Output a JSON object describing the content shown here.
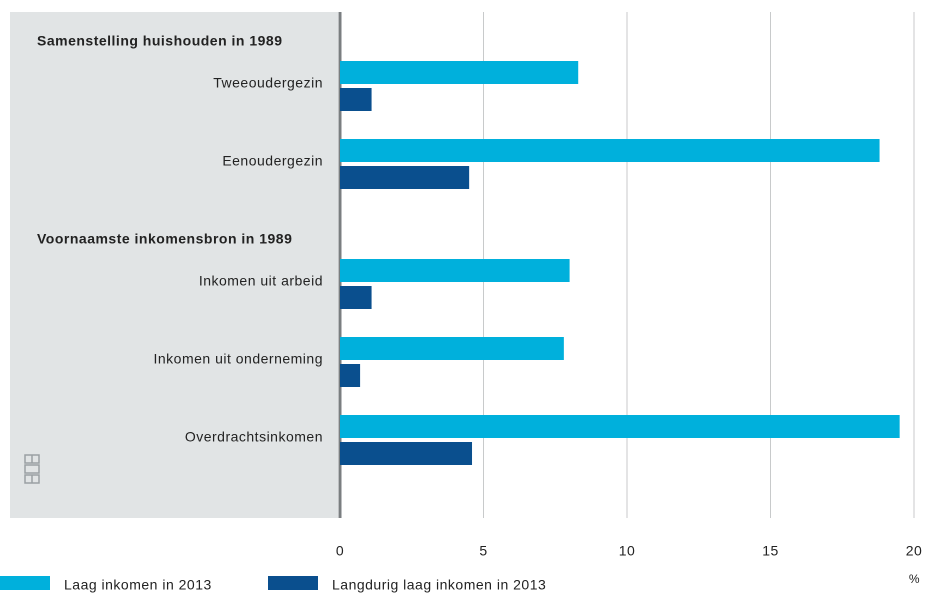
{
  "chart_data": {
    "type": "bar",
    "orientation": "horizontal",
    "categories": [
      "Samenstelling huishouden in 1989",
      "Tweeoudergezin",
      "Eenoudergezin",
      "Voornaamste inkomensbron in 1989",
      "Inkomen uit arbeid",
      "Inkomen uit onderneming",
      "Overdrachtsinkomen"
    ],
    "series": [
      {
        "name": "Laag inkomen in 2013",
        "color": "#00b0dc",
        "values": [
          null,
          8.3,
          18.8,
          null,
          8.0,
          7.8,
          19.5
        ]
      },
      {
        "name": "Langdurig laag inkomen in 2013",
        "color": "#0a4f8e",
        "values": [
          null,
          1.1,
          4.5,
          null,
          1.1,
          0.7,
          4.6
        ]
      }
    ],
    "xlabel": "%",
    "xlim": [
      0,
      20
    ],
    "xticks": [
      0,
      5,
      10,
      15,
      20
    ],
    "grid": true,
    "legend": "bottom-left"
  }
}
